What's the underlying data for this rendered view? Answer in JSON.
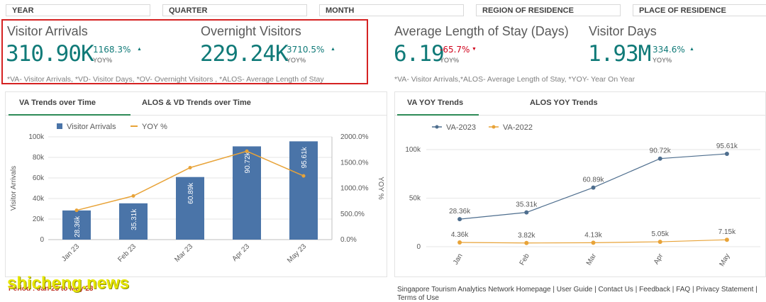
{
  "filters": [
    "YEAR",
    "QUARTER",
    "MONTH",
    "REGION OF RESIDENCE",
    "PLACE OF RESIDENCE"
  ],
  "kpis": {
    "visitor_arrivals": {
      "title": "Visitor Arrivals",
      "value": "310.90K",
      "pct": "1168.3%",
      "yoy": "YOY%",
      "arrow": "▲",
      "pct_color": "#107a78"
    },
    "overnight_visitors": {
      "title": "Overnight Visitors",
      "value": "229.24K",
      "pct": "3710.5%",
      "yoy": "YOY%",
      "arrow": "▲",
      "pct_color": "#107a78"
    },
    "avg_length_of_stay": {
      "title": "Average Length of Stay (Days)",
      "value": "6.19",
      "pct": "-65.7%",
      "yoy": "YOY%",
      "arrow": "▼",
      "pct_color": "#d0021b"
    },
    "visitor_days": {
      "title": "Visitor Days",
      "value": "1.93M",
      "pct": "334.6%",
      "yoy": "YOY%",
      "arrow": "▲",
      "pct_color": "#107a78"
    }
  },
  "footnotes": {
    "left": "*VA- Visitor Arrivals, *VD- Visitor Days, *OV- Overnight Visitors , *ALOS- Average Length of Stay",
    "right": "*VA- Visitor Arrivals,*ALOS- Average Length of Stay, *YOY- Year On Year"
  },
  "tabs_left": {
    "active": "VA Trends over Time",
    "other": "ALOS & VD Trends over Time"
  },
  "tabs_right": {
    "active": "VA YOY Trends",
    "other": "ALOS YOY Trends"
  },
  "footer": {
    "links": "Singapore Tourism Analytics Network Homepage | User Guide | Contact Us | Feedback | FAQ | Privacy Statement |",
    "links2": "Terms of Use",
    "period": "Period : Jan 23 to May 23"
  },
  "watermark": "shicheng.news",
  "colors": {
    "bar": "#4a74a8",
    "yoy_line": "#e8a338",
    "series_2023": "#4e6e8e",
    "series_2022": "#e8a338",
    "kpi": "#107a78"
  },
  "chart_data": [
    {
      "type": "bar",
      "title": "VA Trends over Time",
      "categories": [
        "Jan 23",
        "Feb 23",
        "Mar 23",
        "Apr 23",
        "May 23"
      ],
      "series": [
        {
          "name": "Visitor Arrivals",
          "type": "bar",
          "values": [
            28360,
            35310,
            60890,
            90720,
            95610
          ],
          "labels": [
            "28.36k",
            "35.31k",
            "60.89k",
            "90.72k",
            "95.61k"
          ]
        },
        {
          "name": "YOY %",
          "type": "line",
          "axis": "right",
          "values": [
            570,
            850,
            1400,
            1720,
            1240
          ]
        }
      ],
      "ylabel": "Visitor Arrivals",
      "y2label": "YOY %",
      "ylim": [
        0,
        100000
      ],
      "y2lim": [
        0,
        2000
      ],
      "yticks": [
        "0",
        "20k",
        "40k",
        "60k",
        "80k",
        "100k"
      ],
      "y2ticks": [
        "0.0%",
        "500.0%",
        "1000.0%",
        "1500.0%",
        "2000.0%"
      ],
      "legend": "top-left",
      "grid": true
    },
    {
      "type": "line",
      "title": "VA YOY Trends",
      "categories": [
        "Jan",
        "Feb",
        "Mar",
        "Apr",
        "May"
      ],
      "series": [
        {
          "name": "VA-2023",
          "values": [
            28360,
            35310,
            60890,
            90720,
            95610
          ],
          "labels": [
            "28.36k",
            "35.31k",
            "60.89k",
            "90.72k",
            "95.61k"
          ]
        },
        {
          "name": "VA-2022",
          "values": [
            4360,
            3820,
            4130,
            5050,
            7150
          ],
          "labels": [
            "4.36k",
            "3.82k",
            "4.13k",
            "5.05k",
            "7.15k"
          ]
        }
      ],
      "ylim": [
        0,
        100000
      ],
      "yticks": [
        "0",
        "50k",
        "100k"
      ],
      "legend": "top-left",
      "grid": true
    }
  ]
}
